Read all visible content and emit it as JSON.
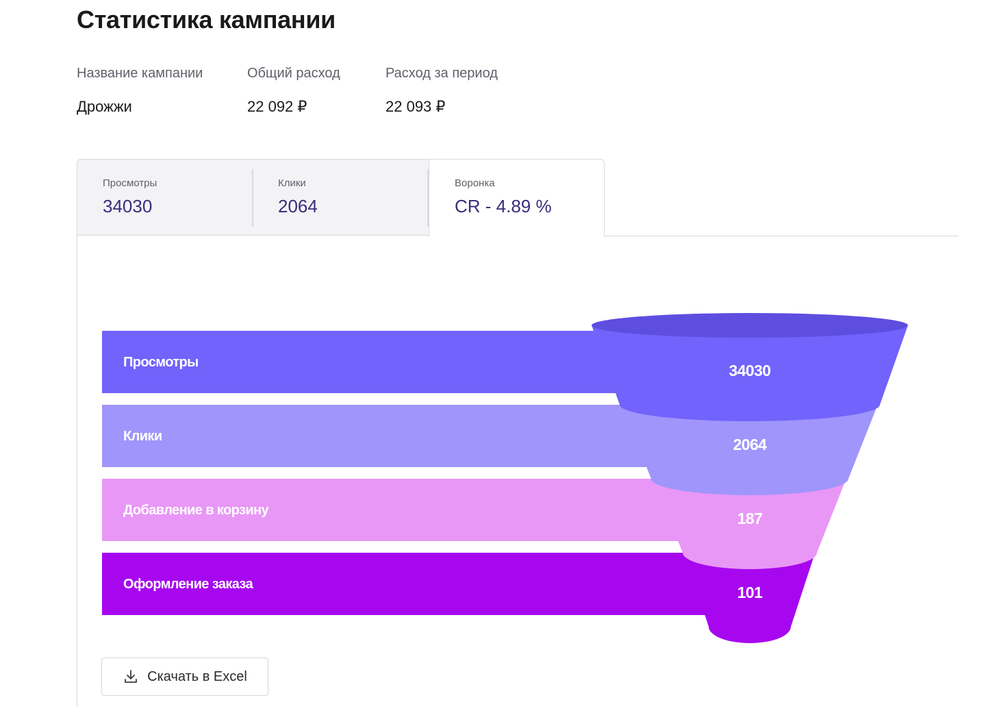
{
  "page": {
    "title": "Статистика кампании"
  },
  "info": {
    "name_label": "Название кампании",
    "name_value": "Дрожжи",
    "total_label": "Общий расход",
    "total_value": "22 092 ₽",
    "period_label": "Расход за период",
    "period_value": "22 093 ₽"
  },
  "tabs": [
    {
      "label": "Просмотры",
      "value": "34030"
    },
    {
      "label": "Клики",
      "value": "2064"
    },
    {
      "label": "Воронка",
      "value": "CR - 4.89 %"
    }
  ],
  "chart_data": {
    "type": "funnel",
    "categories": [
      "Просмотры",
      "Клики",
      "Добавление в корзину",
      "Оформление заказа"
    ],
    "values": [
      34030,
      2064,
      187,
      101
    ],
    "value_labels": [
      "34030",
      "2064",
      "187",
      "101"
    ],
    "colors": [
      "#7163fb",
      "#9f95fb",
      "#e897f6",
      "#a707ef"
    ],
    "top_colors": [
      "#5e4ee0",
      "#8478e8",
      "#cf76e3",
      "#9005cf"
    ]
  },
  "actions": {
    "download_label": "Скачать в Excel"
  },
  "icons": {
    "download": "download-icon"
  }
}
